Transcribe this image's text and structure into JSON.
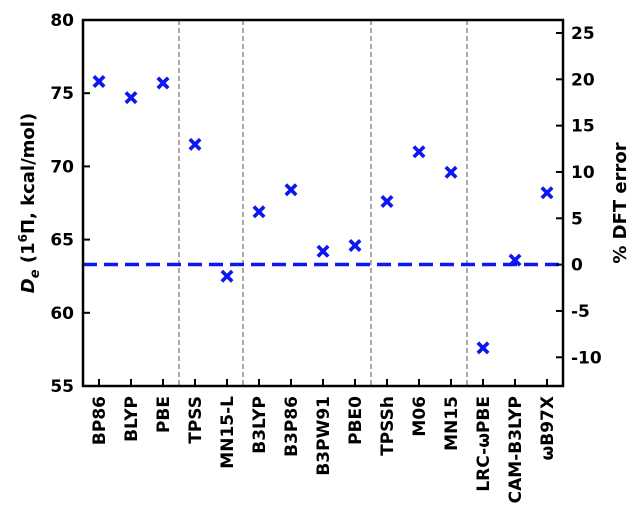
{
  "chart_data": {
    "type": "scatter",
    "categories": [
      "BP86",
      "BLYP",
      "PBE",
      "TPSS",
      "MN15-L",
      "B3LYP",
      "B3P86",
      "B3PW91",
      "PBE0",
      "TPSSh",
      "M06",
      "MN15",
      "LRC-ωPBE",
      "CAM-B3LYP",
      "ωB97X"
    ],
    "values": [
      75.8,
      74.7,
      75.7,
      71.5,
      62.5,
      66.9,
      68.4,
      64.2,
      64.6,
      67.6,
      71.0,
      69.6,
      57.6,
      63.6,
      68.2
    ],
    "reference_value": 63.3,
    "group_separators_after": [
      "PBE",
      "MN15-L",
      "PBE0",
      "MN15"
    ],
    "ylabel_left_prefix": "D",
    "ylabel_left_sub": "e",
    "ylabel_left_paren_open": " (1",
    "ylabel_left_sup": "6",
    "ylabel_left_rest": "Π, kcal/mol)",
    "ylabel_right": "% DFT error",
    "ylim": [
      55,
      80
    ],
    "yticks": [
      55,
      60,
      65,
      70,
      75,
      80
    ],
    "y2lim": [
      -13.1,
      26.4
    ],
    "y2ticks": [
      -10,
      -5,
      0,
      5,
      10,
      15,
      20,
      25
    ],
    "marker": "X",
    "marker_color": "#0d17f0",
    "reference_line_color": "#0d17f0",
    "separator_color": "#8c8c8c",
    "grid": false
  }
}
